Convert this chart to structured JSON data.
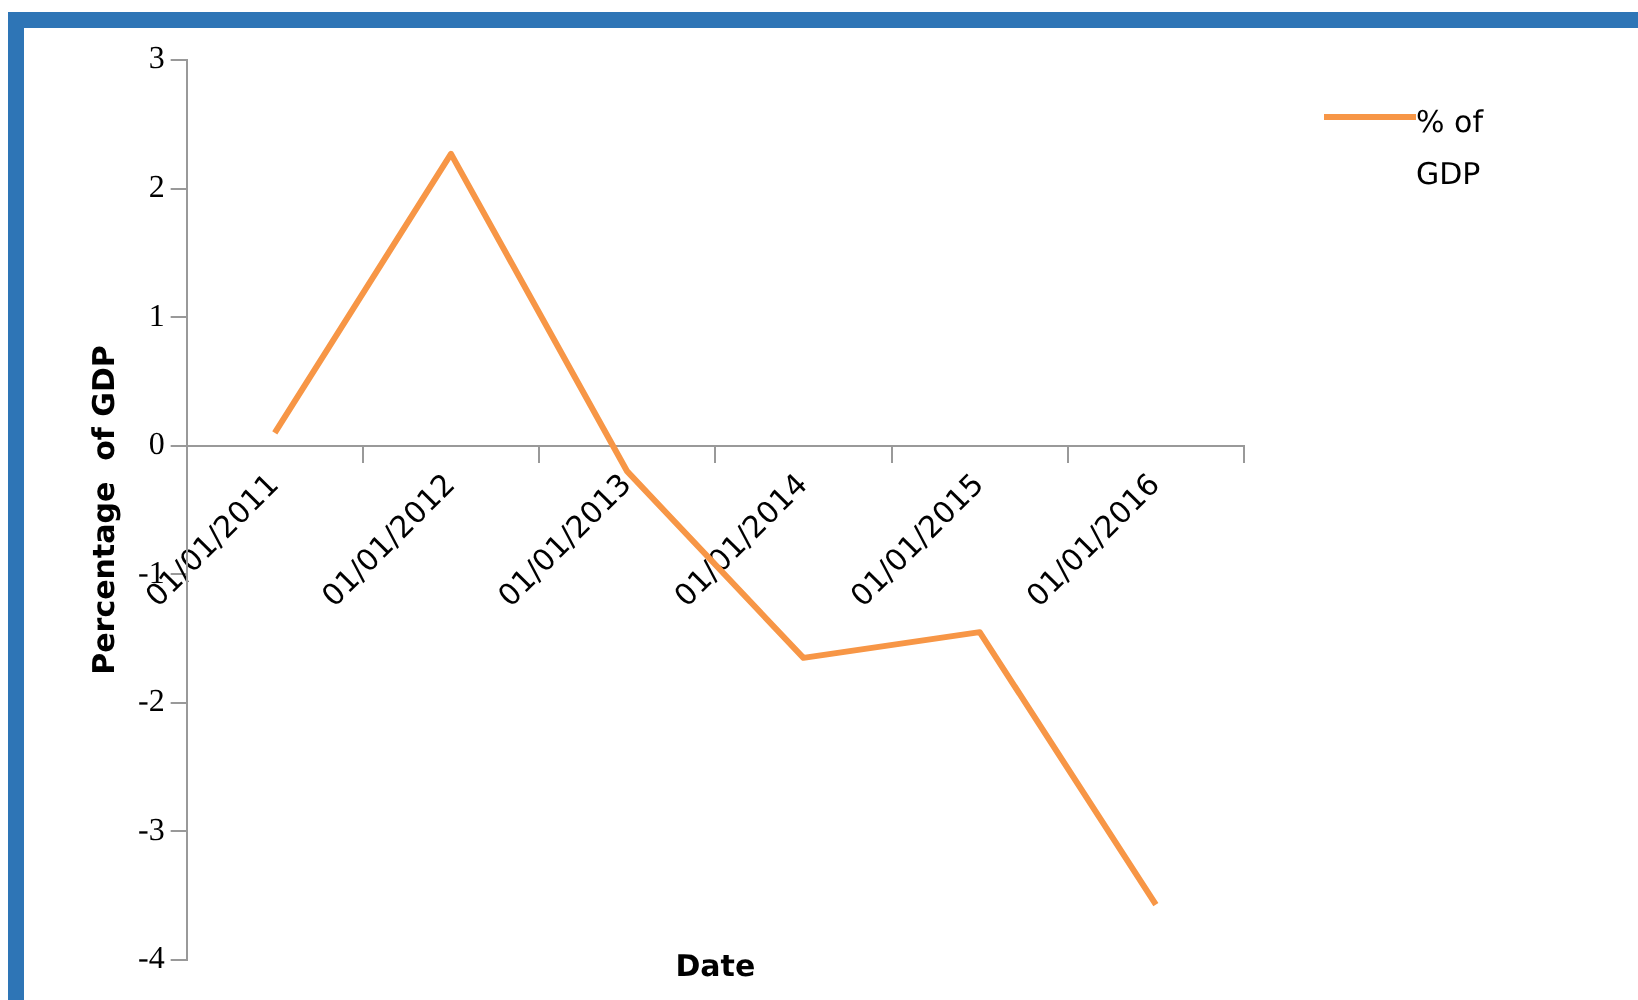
{
  "chart_data": {
    "type": "line",
    "xlabel": "Date",
    "ylabel": "Percentage  of GDP",
    "categories": [
      "01/01/2011",
      "01/01/2012",
      "01/01/2013",
      "01/01/2014",
      "01/01/2015",
      "01/01/2016"
    ],
    "series": [
      {
        "name": "% of GDP",
        "color": "#f79646",
        "values": [
          0.1,
          2.27,
          -0.2,
          -1.65,
          -1.45,
          -3.57
        ]
      }
    ],
    "ylim": [
      -4,
      3
    ],
    "yticks": [
      -4,
      -3,
      -2,
      -1,
      0,
      1,
      2,
      3
    ],
    "grid": false,
    "legend": "top right",
    "marker": "none"
  }
}
